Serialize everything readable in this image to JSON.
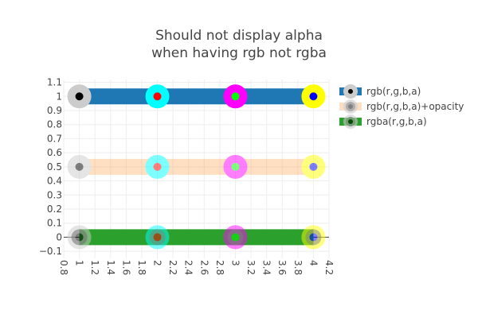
{
  "chart_data": {
    "type": "line",
    "title_lines": [
      "Should not display alpha",
      "when having rgb not rgba"
    ],
    "xlabel": "",
    "ylabel": "",
    "xlim": [
      0.8,
      4.2
    ],
    "ylim": [
      -0.15,
      1.12
    ],
    "x_ticks": [
      0.8,
      1,
      1.2,
      1.4,
      1.6,
      1.8,
      2,
      2.2,
      2.4,
      2.6,
      2.8,
      3,
      3.2,
      3.4,
      3.6,
      3.8,
      4,
      4.2
    ],
    "x_tick_labels": [
      "0.8",
      "1",
      "1.2",
      "1.4",
      "1.6",
      "1.8",
      "2",
      "2.2",
      "2.4",
      "2.6",
      "2.8",
      "3",
      "3.2",
      "3.4",
      "3.6",
      "3.8",
      "4",
      "4.2"
    ],
    "y_ticks": [
      -0.1,
      0,
      0.1,
      0.2,
      0.3,
      0.4,
      0.5,
      0.6,
      0.7,
      0.8,
      0.9,
      1,
      1.1
    ],
    "y_tick_labels": [
      "−0.1",
      "0",
      "0.1",
      "0.2",
      "0.3",
      "0.4",
      "0.5",
      "0.6",
      "0.7",
      "0.8",
      "0.9",
      "1",
      "1.1"
    ],
    "x_tick_angle": 90,
    "grid": true,
    "zero_line": true,
    "legend_position": "right",
    "series": [
      {
        "name": "rgb(r,g,b,a)",
        "x": [
          1,
          2,
          3,
          4
        ],
        "y": [
          1,
          1,
          1,
          1
        ],
        "line_color": "#1f77b4",
        "line_opacity": 1,
        "marker_fill": [
          "#000000",
          "#ff0000",
          "#00ff00",
          "#0000ff"
        ],
        "marker_line": [
          "#cccccc",
          "#00ffff",
          "#ff00ff",
          "#ffff00"
        ],
        "opacity": 1
      },
      {
        "name": "rgb(r,g,b,a)+opacity",
        "x": [
          1,
          2,
          3,
          4
        ],
        "y": [
          0.5,
          0.5,
          0.5,
          0.5
        ],
        "line_color": "#ff7f0e",
        "line_opacity": 0.5,
        "marker_fill": [
          "#000000",
          "#ff0000",
          "#00ff00",
          "#0000ff"
        ],
        "marker_line": [
          "#cccccc",
          "#00ffff",
          "#ff00ff",
          "#ffff00"
        ],
        "opacity": 0.5
      },
      {
        "name": "rgba(r,g,b,a)",
        "x": [
          1,
          2,
          3,
          4
        ],
        "y": [
          0,
          0,
          0,
          0
        ],
        "line_color": "#2ca02c",
        "line_opacity": 1,
        "marker_fill": [
          "#000000",
          "#ff0000",
          "#00ff00",
          "#0000ff"
        ],
        "marker_line": [
          "#cccccc",
          "#00ffff",
          "#ff00ff",
          "#ffff00"
        ],
        "marker_fill_alpha": [
          0.5,
          0.5,
          0.5,
          0.5
        ],
        "marker_line_alpha": [
          0.5,
          0.5,
          0.5,
          0.5
        ],
        "opacity": 1
      }
    ],
    "legend_marker_fill": [
      "#000000",
      "#808080",
      "#005000"
    ]
  }
}
